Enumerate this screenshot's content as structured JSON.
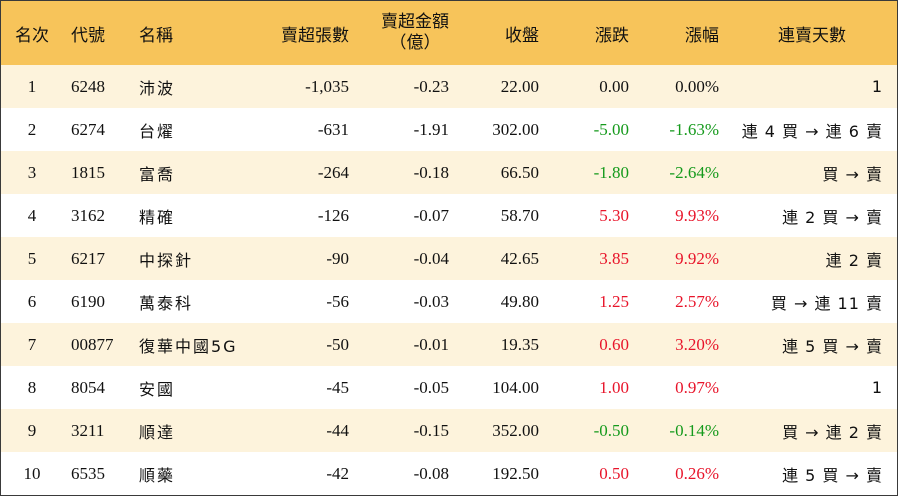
{
  "headers": {
    "rank": "名次",
    "code": "代號",
    "name": "名稱",
    "net_sell_lots": "賣超張數",
    "net_sell_amount_line1": "賣超金額",
    "net_sell_amount_line2": "（億）",
    "close": "收盤",
    "change": "漲跌",
    "change_pct": "漲幅",
    "consecutive_days": "連賣天數"
  },
  "colors": {
    "header_bg": "#f7c45a",
    "odd_row_bg": "#fdf3dc",
    "up": "#e8142a",
    "down": "#159a1c"
  },
  "rows": [
    {
      "rank": "1",
      "code": "6248",
      "name": "沛波",
      "lots": "-1,035",
      "amount": "-0.23",
      "close": "22.00",
      "change": "0.00",
      "pct": "0.00%",
      "trend": "flat",
      "days": "1"
    },
    {
      "rank": "2",
      "code": "6274",
      "name": "台燿",
      "lots": "-631",
      "amount": "-1.91",
      "close": "302.00",
      "change": "-5.00",
      "pct": "-1.63%",
      "trend": "down",
      "days": "連 4 買 → 連 6 賣"
    },
    {
      "rank": "3",
      "code": "1815",
      "name": "富喬",
      "lots": "-264",
      "amount": "-0.18",
      "close": "66.50",
      "change": "-1.80",
      "pct": "-2.64%",
      "trend": "down",
      "days": "買 → 賣"
    },
    {
      "rank": "4",
      "code": "3162",
      "name": "精確",
      "lots": "-126",
      "amount": "-0.07",
      "close": "58.70",
      "change": "5.30",
      "pct": "9.93%",
      "trend": "up",
      "days": "連 2 買 → 賣"
    },
    {
      "rank": "5",
      "code": "6217",
      "name": "中探針",
      "lots": "-90",
      "amount": "-0.04",
      "close": "42.65",
      "change": "3.85",
      "pct": "9.92%",
      "trend": "up",
      "days": "連 2 賣"
    },
    {
      "rank": "6",
      "code": "6190",
      "name": "萬泰科",
      "lots": "-56",
      "amount": "-0.03",
      "close": "49.80",
      "change": "1.25",
      "pct": "2.57%",
      "trend": "up",
      "days": "買 → 連 11 賣"
    },
    {
      "rank": "7",
      "code": "00877",
      "name": "復華中國5G",
      "lots": "-50",
      "amount": "-0.01",
      "close": "19.35",
      "change": "0.60",
      "pct": "3.20%",
      "trend": "up",
      "days": "連 5 買 → 賣"
    },
    {
      "rank": "8",
      "code": "8054",
      "name": "安國",
      "lots": "-45",
      "amount": "-0.05",
      "close": "104.00",
      "change": "1.00",
      "pct": "0.97%",
      "trend": "up",
      "days": "1"
    },
    {
      "rank": "9",
      "code": "3211",
      "name": "順達",
      "lots": "-44",
      "amount": "-0.15",
      "close": "352.00",
      "change": "-0.50",
      "pct": "-0.14%",
      "trend": "down",
      "days": "買 → 連 2 賣"
    },
    {
      "rank": "10",
      "code": "6535",
      "name": "順藥",
      "lots": "-42",
      "amount": "-0.08",
      "close": "192.50",
      "change": "0.50",
      "pct": "0.26%",
      "trend": "up",
      "days": "連 5 買 → 賣"
    }
  ]
}
